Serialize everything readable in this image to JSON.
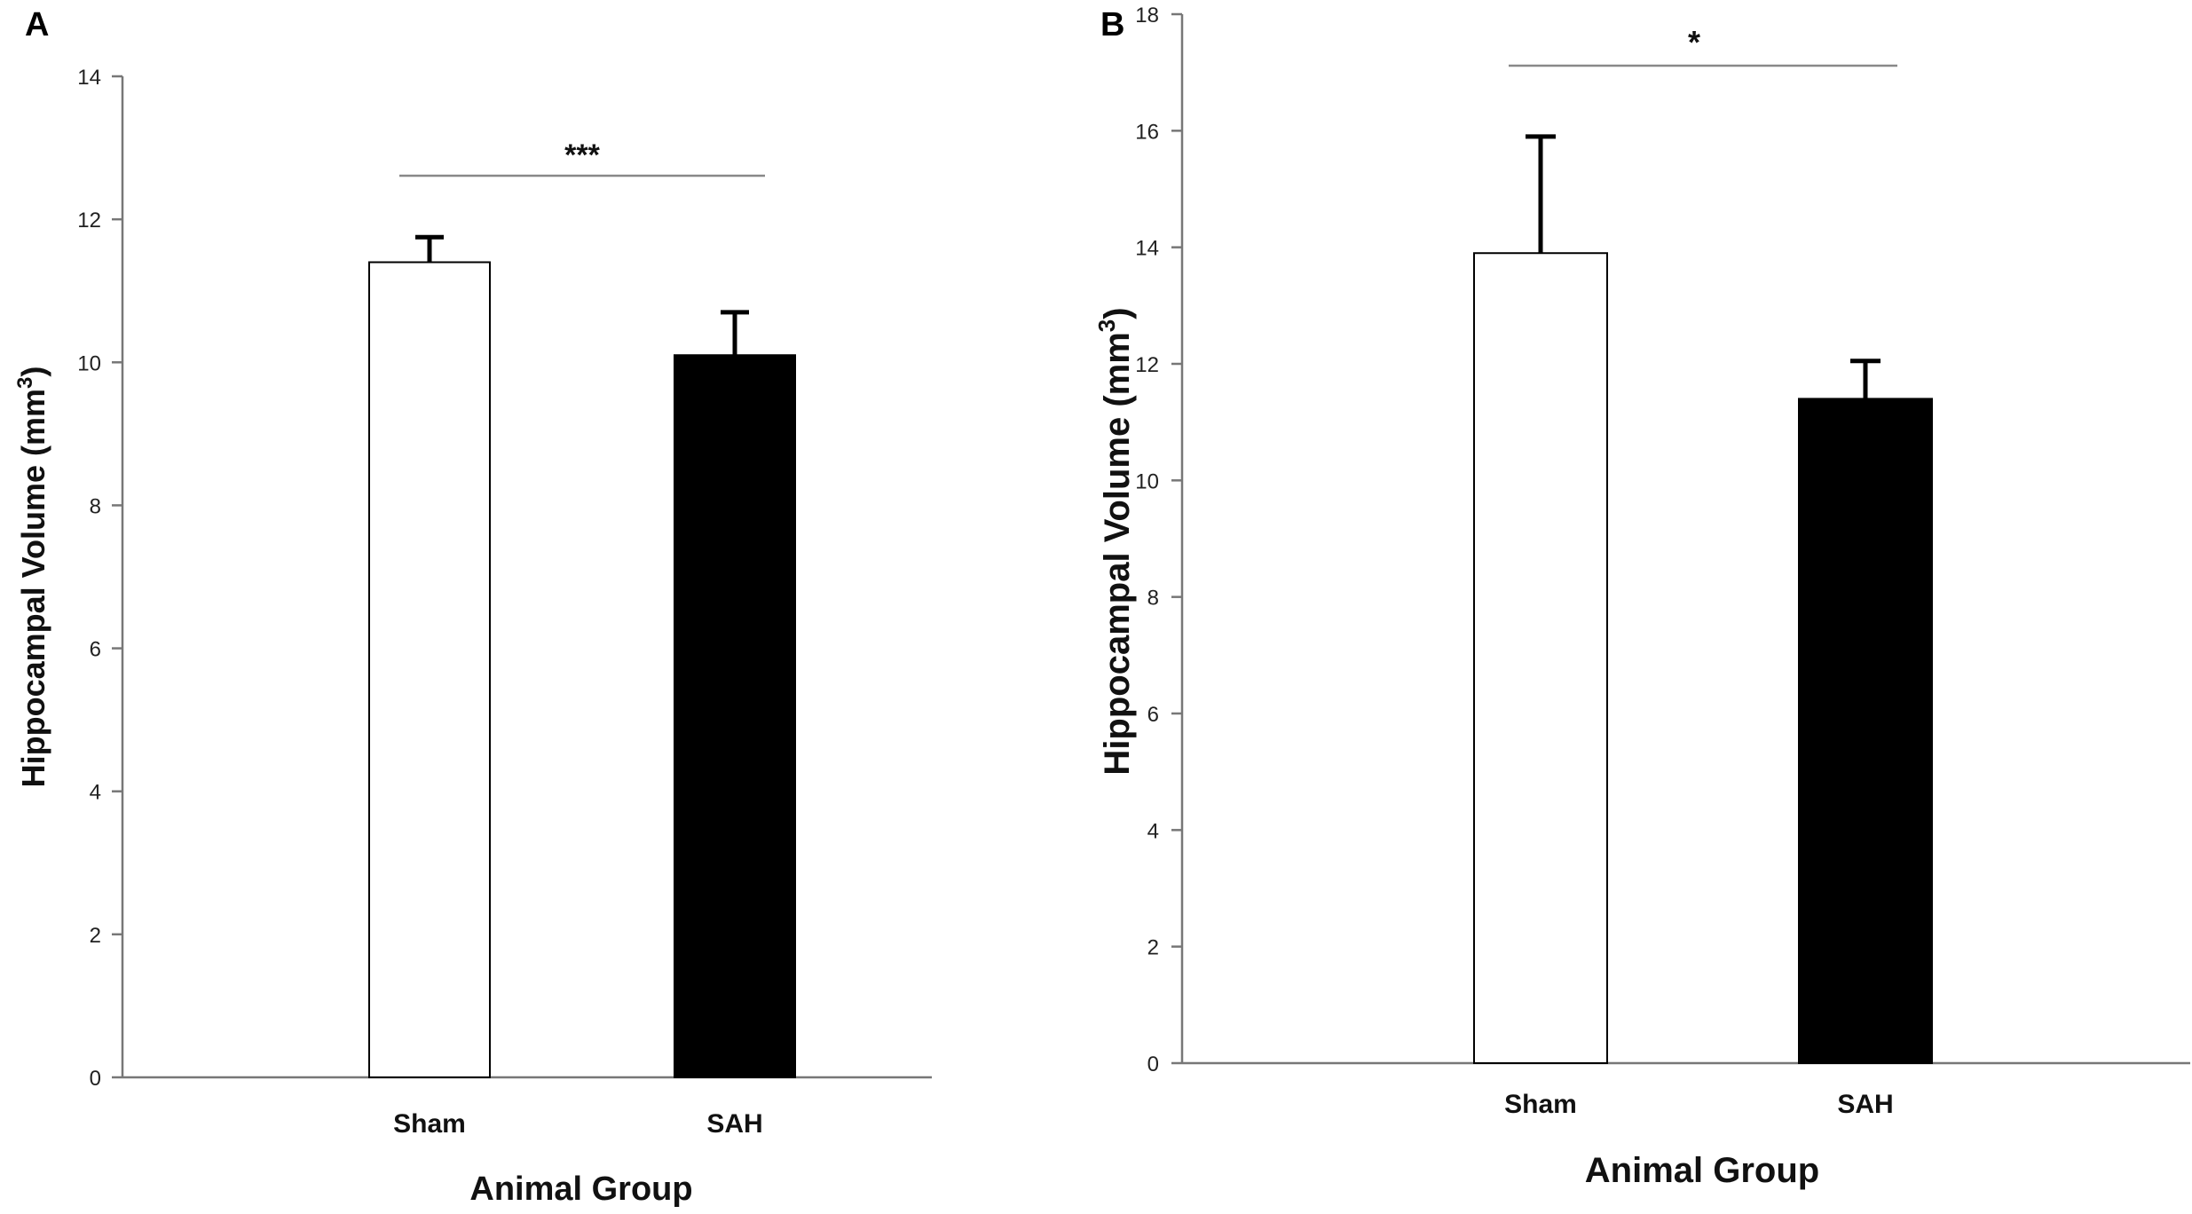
{
  "chart_data": [
    {
      "panel": "A",
      "type": "bar",
      "categories": [
        "Sham",
        "SAH"
      ],
      "values": [
        11.4,
        10.1
      ],
      "errors": [
        0.35,
        0.6
      ],
      "bar_colors": [
        "#ffffff",
        "#000000"
      ],
      "significance": "***",
      "xlabel": "Animal Group",
      "ylabel": "Hippocampal Volume (mm",
      "ylabel_sup": "3",
      "ylabel_close": ")",
      "ylim": [
        0,
        14
      ],
      "yticks": [
        "0",
        "2",
        "4",
        "6",
        "8",
        "10",
        "12",
        "14"
      ]
    },
    {
      "panel": "B",
      "type": "bar",
      "categories": [
        "Sham",
        "SAH"
      ],
      "values": [
        13.9,
        11.4
      ],
      "errors": [
        2.0,
        0.65
      ],
      "bar_colors": [
        "#ffffff",
        "#000000"
      ],
      "significance": "*",
      "xlabel": "Animal Group",
      "ylabel": "Hippocampal Volume (mm",
      "ylabel_sup": "3",
      "ylabel_close": ")",
      "ylim": [
        0,
        18
      ],
      "yticks": [
        "0",
        "2",
        "4",
        "6",
        "8",
        "10",
        "12",
        "14",
        "16",
        "18"
      ]
    }
  ]
}
